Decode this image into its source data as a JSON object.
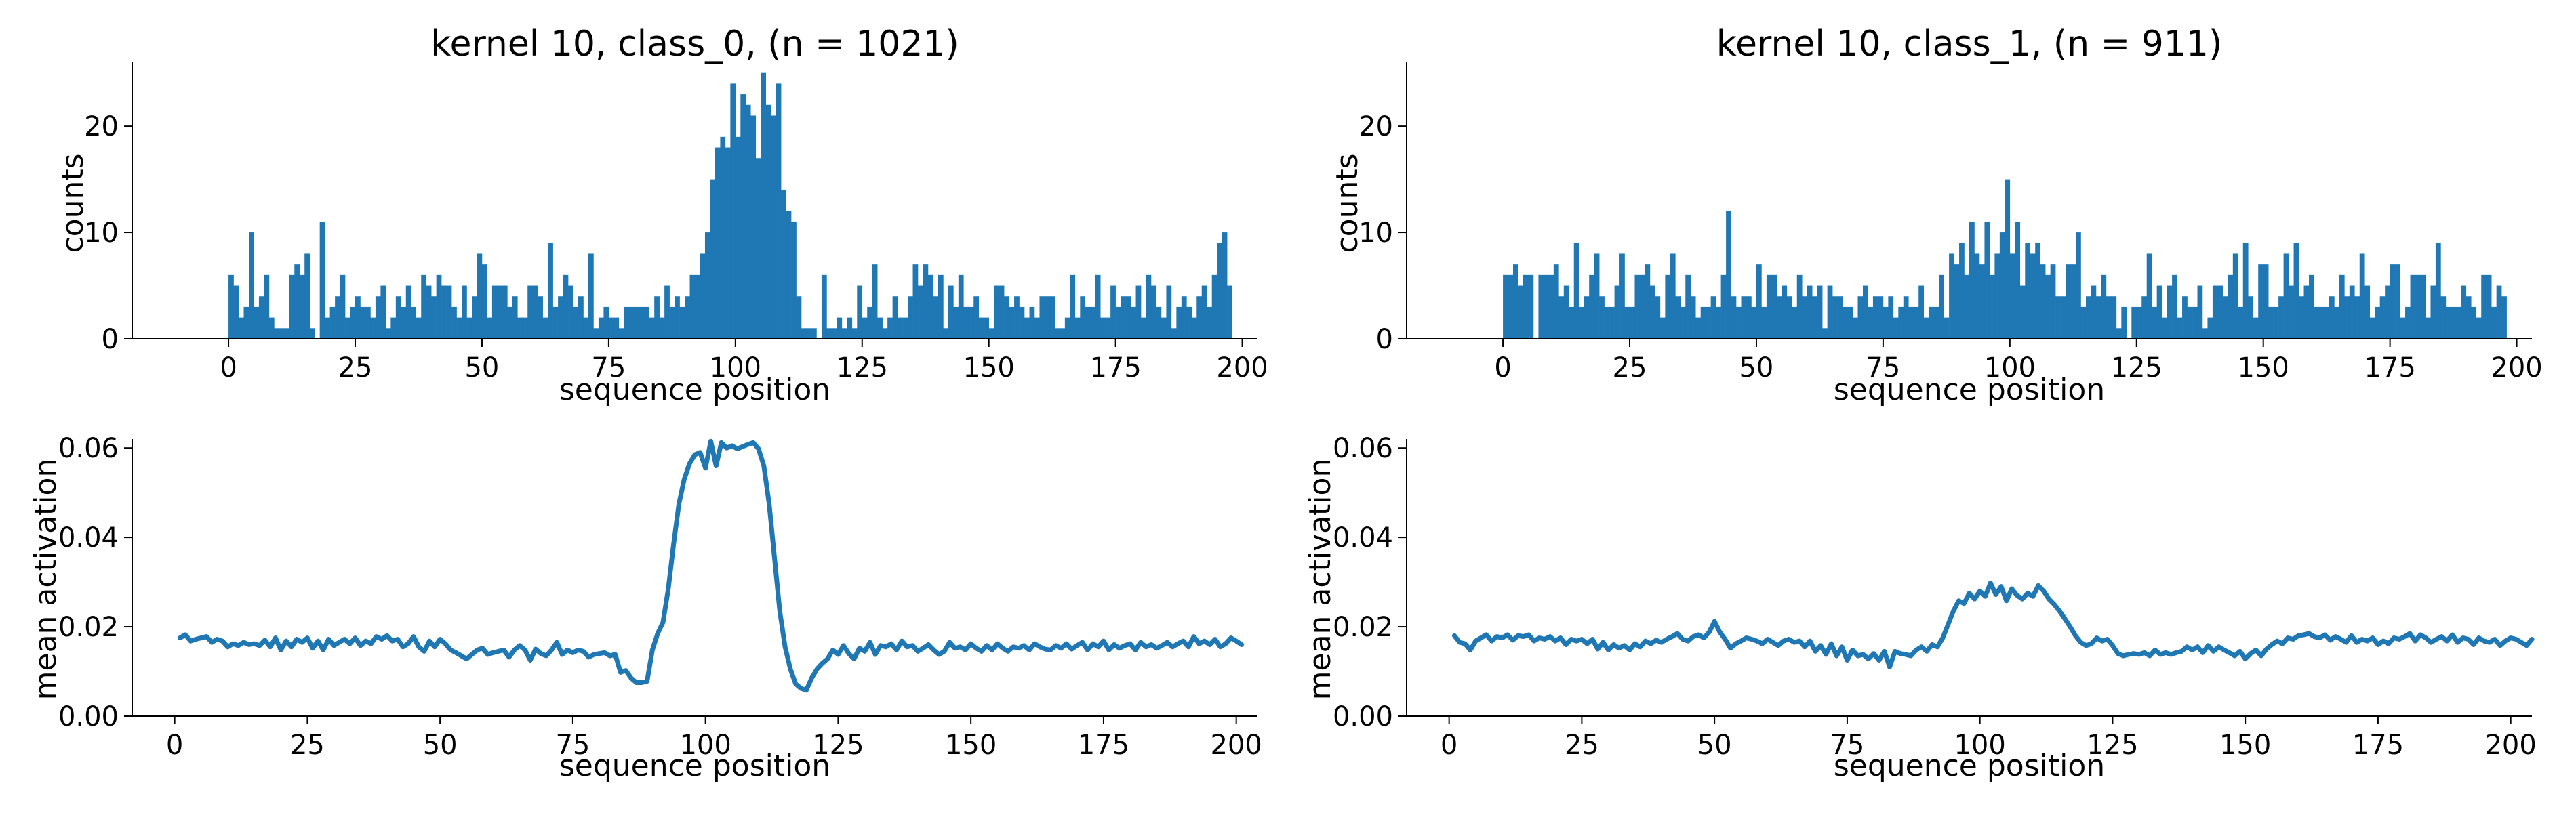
{
  "figure": {
    "color": "#1f77b4",
    "grid": false,
    "legend": "none"
  },
  "chart_data": [
    {
      "panel": "top-left",
      "type": "bar",
      "title": "kernel 10, class_0, (n = 1021)",
      "xlabel": "sequence position",
      "ylabel": "counts",
      "xlim": [
        -19,
        203
      ],
      "ylim": [
        0,
        26
      ],
      "xticks": [
        0,
        25,
        50,
        75,
        100,
        125,
        150,
        175,
        200
      ],
      "yticks": [
        0,
        10,
        20
      ],
      "x_start": 0,
      "bar_width": 1,
      "values": [
        6,
        5,
        2,
        3,
        10,
        3,
        4,
        6,
        2,
        1,
        1,
        1,
        6,
        7,
        6,
        8,
        1,
        0,
        11,
        2,
        3,
        4,
        6,
        2,
        3,
        4,
        3,
        3,
        2,
        4,
        5,
        1,
        2,
        4,
        3,
        5,
        3,
        2,
        6,
        5,
        4,
        6,
        5,
        5,
        3,
        2,
        5,
        2,
        4,
        8,
        7,
        2,
        5,
        5,
        5,
        3,
        4,
        2,
        2,
        5,
        5,
        4,
        2,
        9,
        3,
        4,
        6,
        5,
        3,
        4,
        2,
        8,
        1,
        2,
        3,
        2,
        2,
        1,
        3,
        3,
        3,
        3,
        3,
        2,
        4,
        2,
        5,
        3,
        4,
        3,
        4,
        6,
        6,
        8,
        10,
        15,
        18,
        19,
        18,
        24,
        19,
        23,
        22,
        21,
        17,
        25,
        22,
        21,
        24,
        14,
        12,
        11,
        4,
        1,
        1,
        1,
        0,
        6,
        1,
        1,
        2,
        1,
        2,
        1,
        5,
        2,
        3,
        7,
        2,
        1,
        2,
        4,
        2,
        2,
        4,
        7,
        5,
        7,
        6,
        4,
        6,
        1,
        5,
        3,
        6,
        3,
        3,
        4,
        2,
        2,
        1,
        5,
        5,
        4,
        3,
        4,
        3,
        2,
        3,
        2,
        4,
        4,
        4,
        1,
        1,
        2,
        6,
        2,
        4,
        3,
        3,
        6,
        2,
        2,
        5,
        3,
        4,
        4,
        3,
        5,
        2,
        6,
        5,
        3,
        2,
        5,
        1,
        3,
        4,
        3,
        2,
        4,
        5,
        3,
        6,
        9,
        10,
        5
      ],
      "render_values": [
        6,
        5,
        2,
        3,
        10,
        3,
        4,
        6,
        2,
        1,
        1,
        1,
        6,
        7,
        6,
        8,
        1,
        0,
        11,
        2,
        3,
        4,
        6,
        2,
        3,
        4,
        3,
        3,
        2,
        4,
        5,
        1,
        2,
        4,
        3,
        5,
        3,
        2,
        6,
        5,
        4,
        6,
        5,
        5,
        3,
        2,
        5,
        2,
        4,
        8,
        7,
        2,
        5,
        5,
        5,
        3,
        4,
        2,
        2,
        5,
        5,
        4,
        2,
        9,
        3,
        4,
        6,
        5,
        3,
        4,
        2,
        8,
        1,
        2,
        3,
        2,
        2,
        1,
        3,
        3,
        3,
        3,
        3,
        2,
        4,
        2,
        5,
        3,
        4,
        3,
        4,
        6,
        6,
        8,
        10,
        15,
        18,
        19,
        18,
        24,
        19,
        23,
        22,
        21,
        17,
        25,
        22,
        21,
        24,
        14,
        12,
        11,
        4,
        1,
        1,
        1,
        0,
        6,
        1,
        1,
        2,
        1,
        2,
        1,
        5,
        2,
        3,
        7,
        2,
        1,
        2,
        4,
        2,
        2,
        4,
        7,
        5,
        7,
        6,
        4,
        6,
        1,
        5,
        3,
        6,
        3,
        3,
        4,
        2,
        2,
        1,
        5,
        5,
        4,
        3,
        4,
        3,
        2,
        3,
        2,
        4,
        4,
        4,
        1,
        1,
        2,
        6,
        2,
        4,
        3,
        3,
        6,
        2,
        2,
        5,
        3,
        4,
        4,
        3,
        5,
        2,
        6,
        5,
        3,
        2,
        5,
        1,
        3,
        4,
        3,
        2,
        4,
        5,
        3,
        6,
        9,
        10,
        5
      ]
    },
    {
      "panel": "top-right",
      "type": "bar",
      "title": "kernel 10, class_1, (n = 911)",
      "xlabel": "sequence position",
      "ylabel": "counts",
      "xlim": [
        -19,
        203
      ],
      "ylim": [
        0,
        26
      ],
      "xticks": [
        0,
        25,
        50,
        75,
        100,
        125,
        150,
        175,
        200
      ],
      "yticks": [
        0,
        10,
        20
      ],
      "x_start": 0,
      "bar_width": 1,
      "values": [
        6,
        6,
        7,
        5,
        6,
        6,
        0,
        6,
        6,
        6,
        7,
        4,
        5,
        3,
        9,
        3,
        4,
        6,
        8,
        4,
        3,
        3,
        5,
        8,
        3,
        3,
        6,
        6,
        7,
        5,
        4,
        2,
        6,
        8,
        4,
        3,
        6,
        4,
        2,
        3,
        3,
        4,
        3,
        6,
        12,
        4,
        3,
        4,
        4,
        3,
        7,
        3,
        6,
        6,
        4,
        5,
        4,
        3,
        6,
        4,
        5,
        4,
        5,
        1,
        5,
        4,
        4,
        3,
        3,
        2,
        4,
        5,
        3,
        4,
        4,
        3,
        4,
        2,
        3,
        4,
        3,
        3,
        5,
        2,
        3,
        3,
        6,
        2,
        8,
        7,
        9,
        6,
        11,
        8,
        7,
        11,
        6,
        8,
        10,
        15,
        8,
        11,
        5,
        9,
        8,
        9,
        7,
        6,
        7,
        4,
        4,
        7,
        7,
        10,
        3,
        4,
        5,
        4,
        6,
        4,
        4,
        1,
        3,
        0,
        3,
        3,
        4,
        8,
        3,
        5,
        2,
        5,
        6,
        2,
        4,
        3,
        3,
        5,
        1,
        2,
        5,
        5,
        4,
        6,
        8,
        3,
        9,
        4,
        2,
        7,
        7,
        3,
        3,
        4,
        8,
        5,
        9,
        4,
        5,
        6,
        3,
        3,
        3,
        4,
        3,
        6,
        4,
        5,
        4,
        8,
        5,
        2,
        3,
        4,
        5,
        7,
        7,
        2,
        3,
        6,
        6,
        6,
        2,
        5,
        9,
        4,
        3,
        3,
        3,
        5,
        4,
        3,
        2,
        6,
        6,
        3,
        5,
        4
      ],
      "render_values": [
        6,
        6,
        7,
        5,
        6,
        6,
        0,
        6,
        6,
        6,
        7,
        4,
        5,
        3,
        9,
        3,
        4,
        6,
        8,
        4,
        3,
        3,
        5,
        8,
        3,
        3,
        6,
        6,
        7,
        5,
        4,
        2,
        6,
        8,
        4,
        3,
        6,
        4,
        2,
        3,
        3,
        4,
        3,
        6,
        12,
        4,
        3,
        4,
        4,
        3,
        7,
        3,
        6,
        6,
        4,
        5,
        4,
        3,
        6,
        4,
        5,
        4,
        5,
        1,
        5,
        4,
        4,
        3,
        3,
        2,
        4,
        5,
        3,
        4,
        4,
        3,
        4,
        2,
        3,
        4,
        3,
        3,
        5,
        2,
        3,
        3,
        6,
        2,
        8,
        7,
        9,
        6,
        11,
        8,
        7,
        11,
        6,
        8,
        10,
        15,
        8,
        11,
        5,
        9,
        8,
        9,
        7,
        6,
        7,
        4,
        4,
        7,
        7,
        10,
        3,
        4,
        5,
        4,
        6,
        4,
        4,
        1,
        3,
        0,
        3,
        3,
        4,
        8,
        3,
        5,
        2,
        5,
        6,
        2,
        4,
        3,
        3,
        5,
        1,
        2,
        5,
        5,
        4,
        6,
        8,
        3,
        9,
        4,
        2,
        7,
        7,
        3,
        3,
        4,
        8,
        5,
        9,
        4,
        5,
        6,
        3,
        3,
        3,
        4,
        3,
        6,
        4,
        5,
        4,
        8,
        5,
        2,
        3,
        4,
        5,
        7,
        7,
        2,
        3,
        6,
        6,
        6,
        2,
        5,
        9,
        4,
        3,
        3,
        3,
        5,
        4,
        3,
        2,
        6,
        6,
        3,
        5,
        4
      ]
    },
    {
      "panel": "bottom-left",
      "type": "line",
      "xlabel": "sequence position",
      "ylabel": "mean activation",
      "xlim": [
        -8,
        204
      ],
      "ylim": [
        0,
        0.062
      ],
      "xticks": [
        0,
        25,
        50,
        75,
        100,
        125,
        150,
        175,
        200
      ],
      "yticks": [
        "0.00",
        "0.02",
        "0.04",
        "0.06"
      ],
      "x_start": 1,
      "values": [
        0.0175,
        0.0182,
        0.0168,
        0.0172,
        0.0175,
        0.0178,
        0.0165,
        0.0172,
        0.0168,
        0.0155,
        0.0162,
        0.0158,
        0.0165,
        0.016,
        0.0162,
        0.0158,
        0.017,
        0.0155,
        0.0175,
        0.0148,
        0.0168,
        0.0155,
        0.0172,
        0.0165,
        0.0175,
        0.0152,
        0.0168,
        0.0148,
        0.0172,
        0.0158,
        0.0165,
        0.0172,
        0.0162,
        0.0175,
        0.0158,
        0.0168,
        0.0162,
        0.0178,
        0.0172,
        0.018,
        0.0168,
        0.0172,
        0.0155,
        0.0162,
        0.0178,
        0.0155,
        0.0145,
        0.0168,
        0.0155,
        0.0172,
        0.0162,
        0.0148,
        0.0142,
        0.0135,
        0.0128,
        0.0138,
        0.0148,
        0.0152,
        0.0138,
        0.0142,
        0.0145,
        0.0148,
        0.0132,
        0.0148,
        0.0158,
        0.0148,
        0.0125,
        0.015,
        0.014,
        0.0135,
        0.0148,
        0.0165,
        0.0138,
        0.0148,
        0.0142,
        0.0148,
        0.0145,
        0.0132,
        0.0138,
        0.014,
        0.0142,
        0.0135,
        0.0138,
        0.0098,
        0.0102,
        0.0085,
        0.0075,
        0.0075,
        0.0078,
        0.0148,
        0.0185,
        0.021,
        0.0285,
        0.0385,
        0.0475,
        0.053,
        0.0565,
        0.0585,
        0.059,
        0.0555,
        0.0615,
        0.056,
        0.0612,
        0.06,
        0.0605,
        0.0598,
        0.0603,
        0.0608,
        0.0612,
        0.0598,
        0.056,
        0.0475,
        0.0355,
        0.0235,
        0.0155,
        0.0105,
        0.0072,
        0.0062,
        0.0058,
        0.0085,
        0.0105,
        0.0118,
        0.0128,
        0.0148,
        0.0138,
        0.0158,
        0.014,
        0.0128,
        0.0152,
        0.0145,
        0.0165,
        0.0138,
        0.0158,
        0.0155,
        0.0162,
        0.0148,
        0.0168,
        0.0155,
        0.0158,
        0.0145,
        0.0152,
        0.016,
        0.0148,
        0.0138,
        0.0145,
        0.0165,
        0.0152,
        0.0155,
        0.0148,
        0.0162,
        0.0152,
        0.0145,
        0.0158,
        0.0148,
        0.0162,
        0.0152,
        0.0145,
        0.0155,
        0.0152,
        0.0158,
        0.0148,
        0.0162,
        0.0155,
        0.015,
        0.0148,
        0.0158,
        0.0152,
        0.0162,
        0.015,
        0.0158,
        0.0165,
        0.0148,
        0.0162,
        0.0155,
        0.0168,
        0.0148,
        0.016,
        0.0152,
        0.0158,
        0.0162,
        0.0148,
        0.0165,
        0.0155,
        0.016,
        0.0152,
        0.0158,
        0.0165,
        0.0155,
        0.0162,
        0.0168,
        0.0155,
        0.0178,
        0.0162,
        0.0168,
        0.016,
        0.0172,
        0.0155,
        0.0162,
        0.0175,
        0.0168,
        0.016
      ]
    },
    {
      "panel": "bottom-right",
      "type": "line",
      "xlabel": "sequence position",
      "ylabel": "mean activation",
      "xlim": [
        -8,
        204
      ],
      "ylim": [
        0,
        0.062
      ],
      "xticks": [
        0,
        25,
        50,
        75,
        100,
        125,
        150,
        175,
        200
      ],
      "yticks": [
        "0.00",
        "0.02",
        "0.04",
        "0.06"
      ],
      "x_start": 1,
      "values": [
        0.018,
        0.0165,
        0.0162,
        0.0148,
        0.0168,
        0.0175,
        0.0182,
        0.0168,
        0.0178,
        0.0175,
        0.0182,
        0.017,
        0.018,
        0.0178,
        0.0182,
        0.0168,
        0.0175,
        0.0172,
        0.0178,
        0.0168,
        0.0175,
        0.016,
        0.0172,
        0.0168,
        0.0172,
        0.0162,
        0.0172,
        0.015,
        0.0165,
        0.0148,
        0.016,
        0.0152,
        0.0158,
        0.0148,
        0.0162,
        0.0155,
        0.0168,
        0.0162,
        0.017,
        0.0165,
        0.0172,
        0.0178,
        0.0185,
        0.0172,
        0.0168,
        0.0178,
        0.0182,
        0.0175,
        0.0188,
        0.0212,
        0.0188,
        0.0172,
        0.0152,
        0.0162,
        0.0168,
        0.0175,
        0.0172,
        0.0168,
        0.0162,
        0.0172,
        0.0165,
        0.0158,
        0.0168,
        0.0172,
        0.0165,
        0.0168,
        0.0155,
        0.0168,
        0.0145,
        0.0158,
        0.0138,
        0.0162,
        0.0135,
        0.0155,
        0.0125,
        0.0148,
        0.0135,
        0.0138,
        0.0128,
        0.014,
        0.0125,
        0.0145,
        0.011,
        0.0145,
        0.014,
        0.0138,
        0.0135,
        0.0148,
        0.0155,
        0.0145,
        0.016,
        0.0155,
        0.0175,
        0.0205,
        0.0235,
        0.0258,
        0.0252,
        0.0275,
        0.0262,
        0.028,
        0.0268,
        0.0298,
        0.0272,
        0.029,
        0.0258,
        0.0285,
        0.027,
        0.0262,
        0.0275,
        0.0268,
        0.0292,
        0.028,
        0.0262,
        0.025,
        0.0235,
        0.0218,
        0.02,
        0.018,
        0.0165,
        0.0158,
        0.0162,
        0.0175,
        0.0168,
        0.0172,
        0.0158,
        0.014,
        0.0135,
        0.0138,
        0.014,
        0.0138,
        0.0142,
        0.0135,
        0.0148,
        0.0138,
        0.0142,
        0.0138,
        0.0142,
        0.0145,
        0.0155,
        0.0148,
        0.0155,
        0.0142,
        0.0158,
        0.0145,
        0.0155,
        0.0148,
        0.0142,
        0.0135,
        0.0145,
        0.0128,
        0.014,
        0.0148,
        0.0135,
        0.015,
        0.016,
        0.0168,
        0.0162,
        0.0175,
        0.0172,
        0.018,
        0.0182,
        0.0185,
        0.0178,
        0.0175,
        0.0182,
        0.017,
        0.0178,
        0.0172,
        0.0165,
        0.018,
        0.0165,
        0.0172,
        0.0168,
        0.0175,
        0.016,
        0.0168,
        0.0162,
        0.0175,
        0.0172,
        0.0178,
        0.0185,
        0.0168,
        0.0182,
        0.0175,
        0.0165,
        0.0172,
        0.0178,
        0.0168,
        0.0182,
        0.0165,
        0.0175,
        0.0172,
        0.016,
        0.0175,
        0.0168,
        0.0165,
        0.0172,
        0.0158,
        0.0168,
        0.0175,
        0.0172,
        0.0165,
        0.0158,
        0.0172
      ]
    }
  ]
}
